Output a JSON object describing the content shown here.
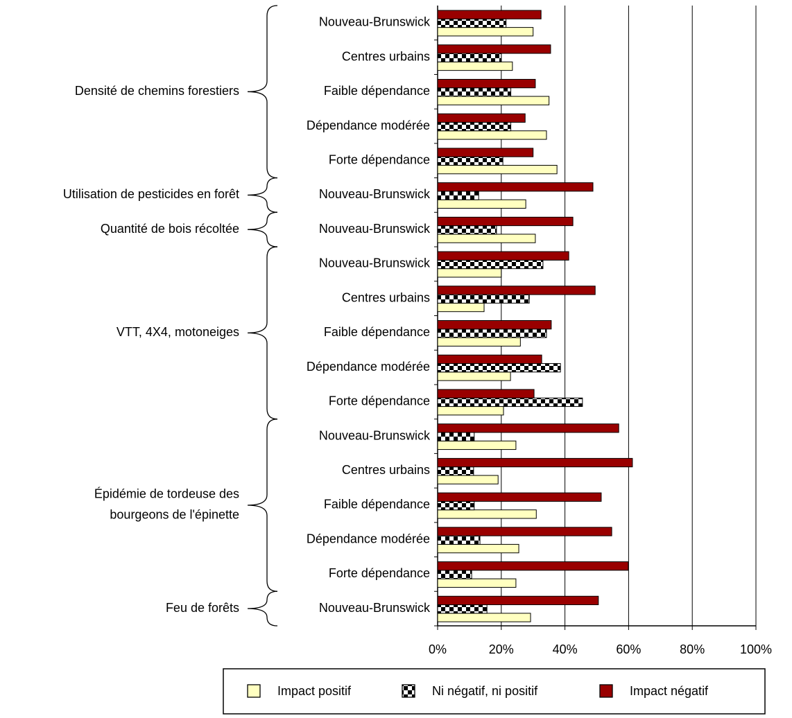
{
  "chart_data": {
    "type": "bar",
    "orientation": "horizontal",
    "groups": [
      {
        "name": "Densité de chemins forestiers",
        "categories": [
          "Nouveau-Brunswick",
          "Centres urbains",
          "Faible dépendance",
          "Dépendance modérée",
          "Forte dépendance"
        ]
      },
      {
        "name": "Utilisation de pesticides en forêt",
        "categories": [
          "Nouveau-Brunswick"
        ]
      },
      {
        "name": "Quantité de bois récoltée",
        "categories": [
          "Nouveau-Brunswick"
        ]
      },
      {
        "name": "VTT, 4X4, motoneiges",
        "categories": [
          "Nouveau-Brunswick",
          "Centres urbains",
          "Faible dépendance",
          "Dépendance modérée",
          "Forte dépendance"
        ]
      },
      {
        "name": [
          "Épidémie de tordeuse des",
          "bourgeons de l'épinette"
        ],
        "categories": [
          "Nouveau-Brunswick",
          "Centres urbains",
          "Faible dépendance",
          "Dépendance modérée",
          "Forte dépendance"
        ]
      },
      {
        "name": "Feu de forêts",
        "categories": [
          "Nouveau-Brunswick"
        ]
      }
    ],
    "series": [
      {
        "name": "Impact positif",
        "color": "#ffffc0",
        "values": [
          30,
          23.5,
          35,
          34.2,
          37.5,
          27.7,
          30.7,
          20,
          14.6,
          26,
          22.9,
          20.7,
          24.6,
          19,
          31,
          25.5,
          24.6,
          29.2
        ]
      },
      {
        "name": "Ni négatif, ni positif",
        "color": "checker",
        "values": [
          21.5,
          20,
          23,
          23,
          20.5,
          12.9,
          18.5,
          33.1,
          28.8,
          34.2,
          38.6,
          45.5,
          11.5,
          11.3,
          11.5,
          13.3,
          10.7,
          15.5
        ]
      },
      {
        "name": "Impact négatif",
        "color": "#990000",
        "values": [
          32.5,
          35.5,
          30.7,
          27.5,
          30,
          48.8,
          42.5,
          41.2,
          49.5,
          35.7,
          32.7,
          30.3,
          56.9,
          61.2,
          51.4,
          54.7,
          59.9,
          50.5
        ]
      }
    ],
    "xlim": [
      0,
      100
    ],
    "xticks": [
      {
        "value": 0,
        "label": "0%"
      },
      {
        "value": 20,
        "label": "20%"
      },
      {
        "value": 40,
        "label": "40%"
      },
      {
        "value": 60,
        "label": "60%"
      },
      {
        "value": 80,
        "label": "80%"
      },
      {
        "value": 100,
        "label": "100%"
      }
    ],
    "grid": true,
    "legend": "bottom"
  }
}
